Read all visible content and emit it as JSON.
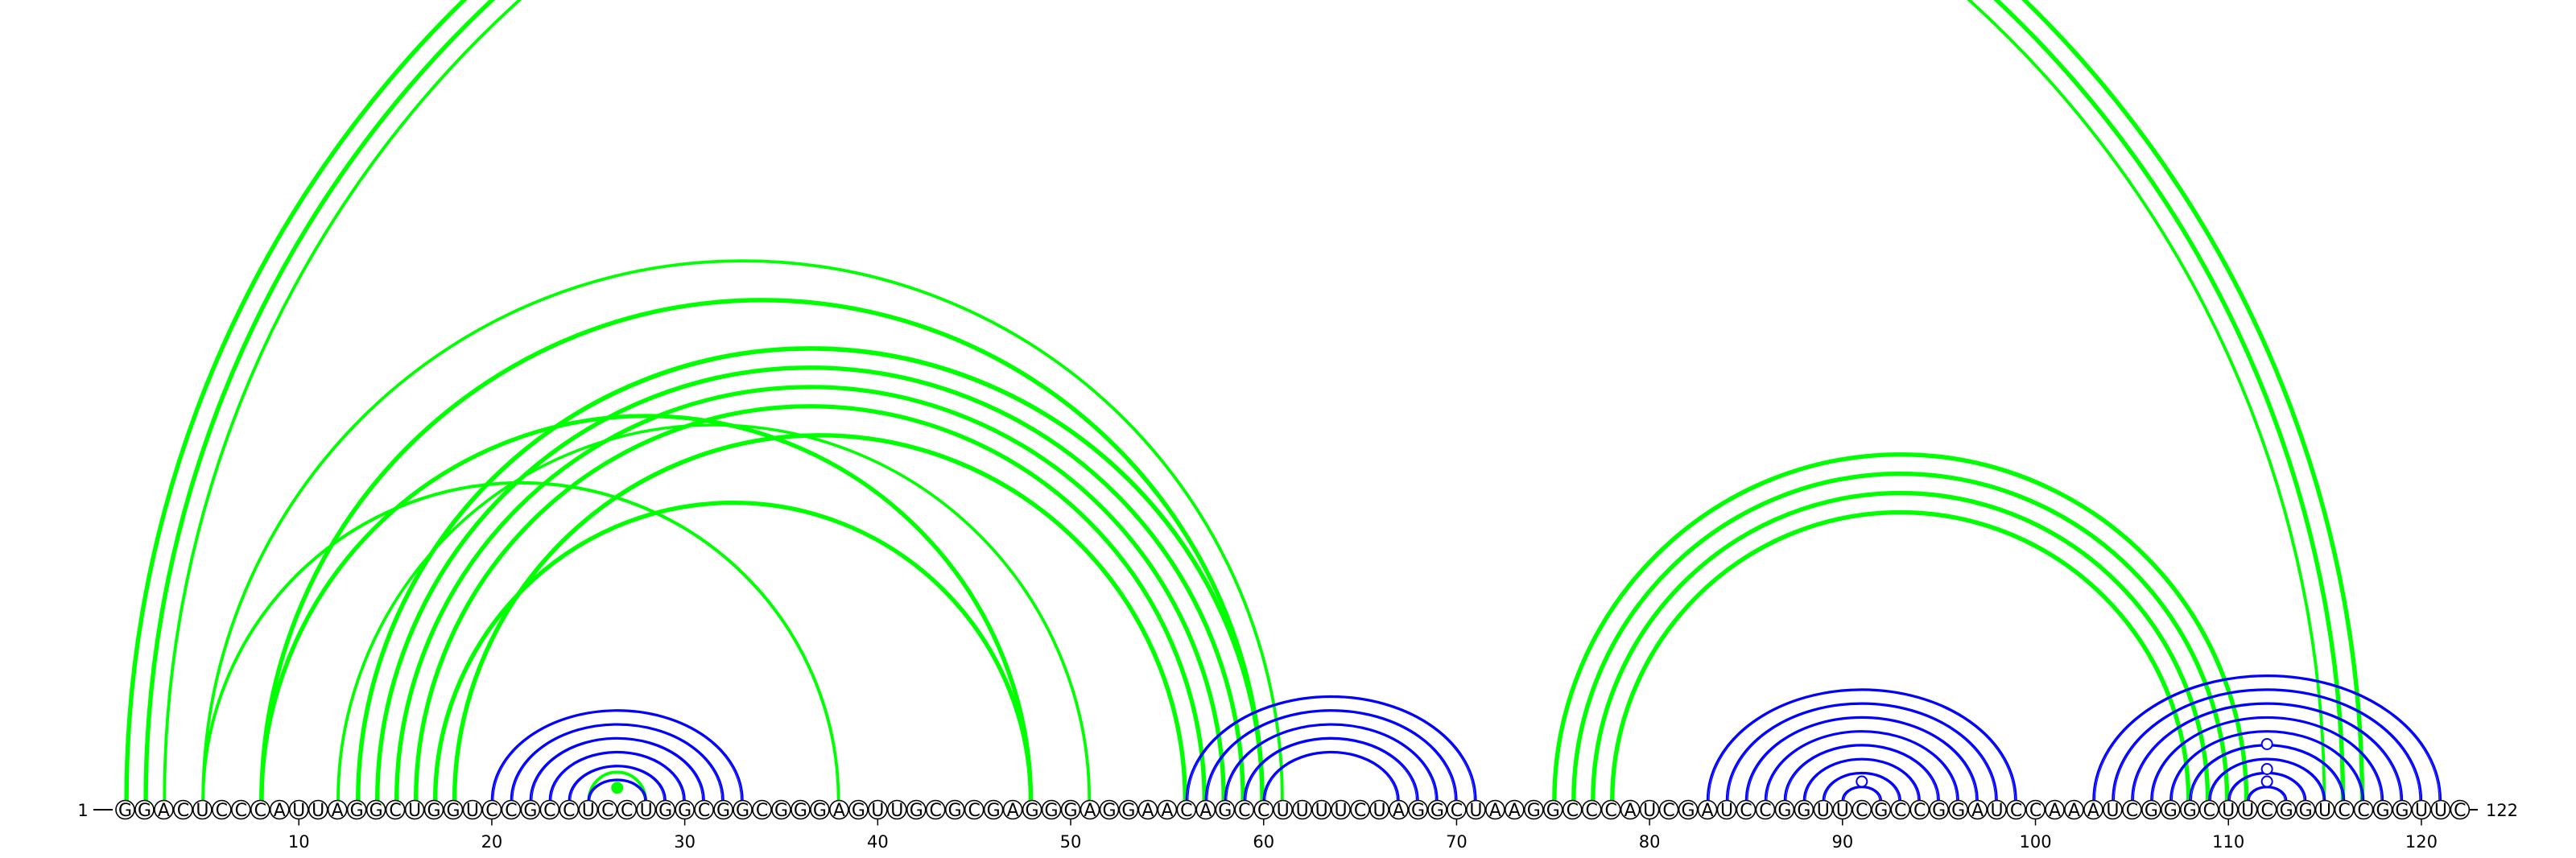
{
  "diagram": {
    "sequence": "GGACUCCCAUUAGGCUGGUCCGCCUCCUGGCGGCGGGAGUUGCGCGAGGGAGGAACAGCCUUUUCUAGGCUAAGGCCCAUCGAUCCGGUUCGCCGGAUCCAAAUCGGGCUUCGGUCCGGUUC",
    "start_label": "1",
    "end_label": "122",
    "tick_labels": [
      "10",
      "20",
      "30",
      "40",
      "50",
      "60",
      "70",
      "80",
      "90",
      "100",
      "110",
      "120"
    ],
    "tick_positions": [
      10,
      20,
      30,
      40,
      50,
      60,
      70,
      80,
      90,
      100,
      110,
      120
    ],
    "colors": {
      "nested": "#0000ff",
      "crossing": "#00ff00",
      "circle_fill": "#ffffff",
      "circle_stroke": "#000000"
    },
    "crossing_arcs": [
      {
        "i": 1,
        "j": 117,
        "weight": 3
      },
      {
        "i": 2,
        "j": 116,
        "weight": 3
      },
      {
        "i": 3,
        "j": 115,
        "weight": 2
      },
      {
        "i": 5,
        "j": 61,
        "weight": 2
      },
      {
        "i": 5,
        "j": 38,
        "weight": 2
      },
      {
        "i": 8,
        "j": 60,
        "weight": 3
      },
      {
        "i": 8,
        "j": 48,
        "weight": 3
      },
      {
        "i": 12,
        "j": 51,
        "weight": 2
      },
      {
        "i": 13,
        "j": 60,
        "weight": 3
      },
      {
        "i": 14,
        "j": 59,
        "weight": 3
      },
      {
        "i": 15,
        "j": 58,
        "weight": 3
      },
      {
        "i": 16,
        "j": 57,
        "weight": 3
      },
      {
        "i": 17,
        "j": 48,
        "weight": 3
      },
      {
        "i": 18,
        "j": 56,
        "weight": 3
      },
      {
        "i": 25,
        "j": 28,
        "weight": 2
      },
      {
        "i": 75,
        "j": 111,
        "weight": 3
      },
      {
        "i": 76,
        "j": 110,
        "weight": 3
      },
      {
        "i": 77,
        "j": 109,
        "weight": 3
      },
      {
        "i": 78,
        "j": 108,
        "weight": 3
      }
    ],
    "nested_arcs": [
      {
        "i": 20,
        "j": 33
      },
      {
        "i": 21,
        "j": 32
      },
      {
        "i": 22,
        "j": 31
      },
      {
        "i": 23,
        "j": 30
      },
      {
        "i": 24,
        "j": 29
      },
      {
        "i": 25,
        "j": 28
      },
      {
        "i": 56,
        "j": 71
      },
      {
        "i": 57,
        "j": 70
      },
      {
        "i": 58,
        "j": 69
      },
      {
        "i": 59,
        "j": 68
      },
      {
        "i": 60,
        "j": 67
      },
      {
        "i": 83,
        "j": 99
      },
      {
        "i": 84,
        "j": 98
      },
      {
        "i": 85,
        "j": 97
      },
      {
        "i": 86,
        "j": 96
      },
      {
        "i": 87,
        "j": 95
      },
      {
        "i": 88,
        "j": 94
      },
      {
        "i": 89,
        "j": 93
      },
      {
        "i": 90,
        "j": 92
      },
      {
        "i": 103,
        "j": 121
      },
      {
        "i": 104,
        "j": 120
      },
      {
        "i": 105,
        "j": 119
      },
      {
        "i": 106,
        "j": 118
      },
      {
        "i": 107,
        "j": 117
      },
      {
        "i": 108,
        "j": 116
      },
      {
        "i": 109,
        "j": 115
      },
      {
        "i": 110,
        "j": 114
      },
      {
        "i": 111,
        "j": 113
      }
    ],
    "markers": [
      {
        "pos": 26.5,
        "level": 0.5,
        "filled": true,
        "color": "#00ff00"
      },
      {
        "pos": 91,
        "level": 1,
        "filled": false,
        "color": "#0000ff"
      },
      {
        "pos": 112,
        "level": 1,
        "filled": false,
        "color": "#0000ff"
      },
      {
        "pos": 112,
        "level": 2,
        "filled": false,
        "color": "#0000ff"
      },
      {
        "pos": 112,
        "level": 4,
        "filled": false,
        "color": "#0000ff"
      }
    ]
  }
}
